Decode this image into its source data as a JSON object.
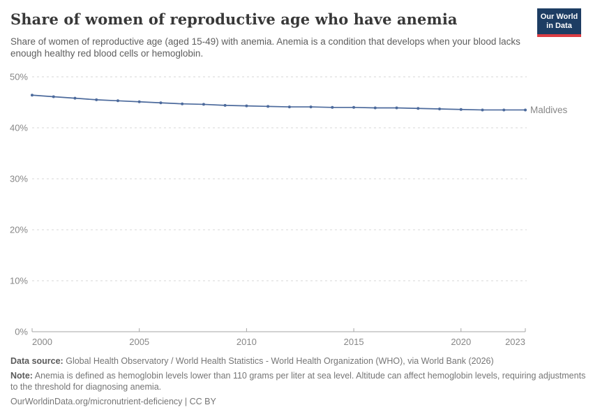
{
  "header": {
    "title": "Share of women of reproductive age who have anemia",
    "subtitle": "Share of women of reproductive age (aged 15-49) with anemia. Anemia is a condition that develops when your blood lacks enough healthy red blood cells or hemoglobin.",
    "logo": {
      "line1": "Our World",
      "line2": "in Data",
      "bg_color": "#1d3d63",
      "accent_color": "#dc3d43"
    }
  },
  "chart_data": {
    "type": "line",
    "title": "Share of women of reproductive age who have anemia",
    "x": [
      2000,
      2001,
      2002,
      2003,
      2004,
      2005,
      2006,
      2007,
      2008,
      2009,
      2010,
      2011,
      2012,
      2013,
      2014,
      2015,
      2016,
      2017,
      2018,
      2019,
      2020,
      2021,
      2022,
      2023
    ],
    "series": [
      {
        "name": "Maldives",
        "color": "#4C6A9C",
        "values": [
          46.4,
          46.1,
          45.8,
          45.5,
          45.3,
          45.1,
          44.9,
          44.7,
          44.6,
          44.4,
          44.3,
          44.2,
          44.1,
          44.1,
          44.0,
          44.0,
          43.9,
          43.9,
          43.8,
          43.7,
          43.6,
          43.5,
          43.5,
          43.5
        ]
      }
    ],
    "xlim": [
      2000,
      2023
    ],
    "ylim": [
      0,
      50
    ],
    "x_ticks": [
      2000,
      2005,
      2010,
      2015,
      2020,
      2023
    ],
    "y_ticks": [
      0,
      10,
      20,
      30,
      40,
      50
    ],
    "y_tick_suffix": "%",
    "grid": "horizontal-dashed",
    "gridline_color": "#d7d7d7",
    "axis_color": "#a5a5a5",
    "legend": "series-end-label"
  },
  "footer": {
    "data_source_label": "Data source:",
    "data_source_text": "Global Health Observatory / World Health Statistics - World Health Organization (WHO), via World Bank (2026)",
    "note_label": "Note:",
    "note_text": "Anemia is defined as hemoglobin levels lower than 110 grams per liter at sea level. Altitude can affect hemoglobin levels, requiring adjustments to the threshold for diagnosing anemia.",
    "citation": "OurWorldinData.org/micronutrient-deficiency | CC BY"
  }
}
